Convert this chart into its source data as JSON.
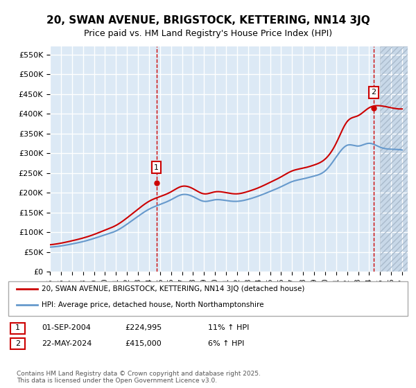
{
  "title": "20, SWAN AVENUE, BRIGSTOCK, KETTERING, NN14 3JQ",
  "subtitle": "Price paid vs. HM Land Registry's House Price Index (HPI)",
  "ylabel_ticks": [
    "£0",
    "£50K",
    "£100K",
    "£150K",
    "£200K",
    "£250K",
    "£300K",
    "£350K",
    "£400K",
    "£450K",
    "£500K",
    "£550K"
  ],
  "ylim": [
    0,
    570000
  ],
  "xlim_start": 1995.0,
  "xlim_end": 2027.5,
  "background_color": "#ffffff",
  "plot_bg_color": "#dce9f5",
  "grid_color": "#ffffff",
  "hatch_color": "#c8d8e8",
  "red_line_color": "#cc0000",
  "blue_line_color": "#6699cc",
  "marker1_x": 2004.67,
  "marker1_y": 224995,
  "marker2_x": 2024.39,
  "marker2_y": 415000,
  "legend_line1": "20, SWAN AVENUE, BRIGSTOCK, KETTERING, NN14 3JQ (detached house)",
  "legend_line2": "HPI: Average price, detached house, North Northamptonshire",
  "annotation1_label": "1",
  "annotation1_date": "01-SEP-2004",
  "annotation1_price": "£224,995",
  "annotation1_hpi": "11% ↑ HPI",
  "annotation2_label": "2",
  "annotation2_date": "22-MAY-2024",
  "annotation2_price": "£415,000",
  "annotation2_hpi": "6% ↑ HPI",
  "footer": "Contains HM Land Registry data © Crown copyright and database right 2025.\nThis data is licensed under the Open Government Licence v3.0."
}
